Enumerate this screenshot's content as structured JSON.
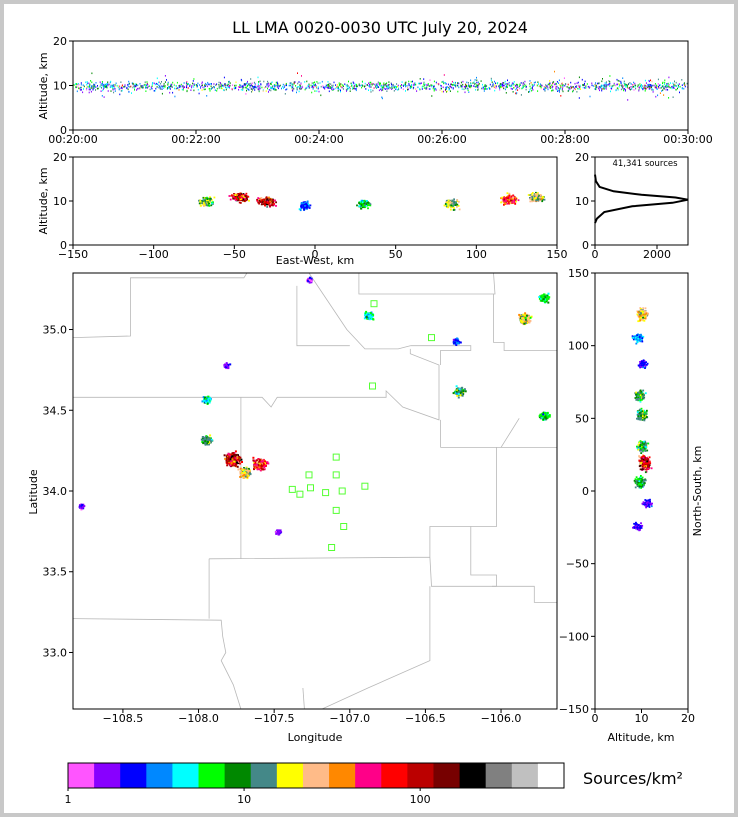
{
  "chart_data": [
    {
      "type": "scatter",
      "panel": "altitude-time",
      "title": "LL LMA 0020-0030 UTC July 20, 2024",
      "ylabel": "Altitude, km",
      "xlim_labels": [
        "00:20:00",
        "00:30:00"
      ],
      "x_ticks": [
        "00:20:00",
        "00:22:00",
        "00:24:00",
        "00:26:00",
        "00:28:00",
        "00:30:00"
      ],
      "ylim": [
        0,
        20
      ],
      "y_ticks": [
        0,
        10,
        20
      ],
      "altitude_band_km": [
        5,
        15
      ],
      "core_altitude_km": 10
    },
    {
      "type": "heatmap",
      "panel": "east-west-altitude",
      "xlabel": "East-West, km",
      "ylabel": "Altitude, km",
      "xlim": [
        -150,
        150
      ],
      "x_ticks": [
        -150,
        -100,
        -50,
        0,
        50,
        100,
        150
      ],
      "ylim": [
        0,
        20
      ],
      "y_ticks": [
        0,
        10,
        20
      ],
      "clusters": [
        {
          "x": -68,
          "alt": 10,
          "intensity": 0.5
        },
        {
          "x": -47,
          "alt": 11,
          "intensity": 0.85
        },
        {
          "x": -30,
          "alt": 10,
          "intensity": 0.9
        },
        {
          "x": -7,
          "alt": 9,
          "intensity": 0.15
        },
        {
          "x": 30,
          "alt": 9.5,
          "intensity": 0.35
        },
        {
          "x": 84,
          "alt": 9.5,
          "intensity": 0.5
        },
        {
          "x": 120,
          "alt": 10.5,
          "intensity": 0.75
        },
        {
          "x": 137,
          "alt": 11,
          "intensity": 0.55
        }
      ]
    },
    {
      "type": "line",
      "panel": "altitude-histogram",
      "annotation": "41,341 sources",
      "xlim": [
        0,
        3000
      ],
      "x_ticks": [
        0,
        2000
      ],
      "ylim": [
        0,
        20
      ],
      "y_ticks": [
        0,
        10,
        20
      ],
      "curve": [
        [
          0,
          5
        ],
        [
          60,
          6
        ],
        [
          300,
          7.5
        ],
        [
          1200,
          8.8
        ],
        [
          2500,
          9.6
        ],
        [
          3000,
          10.3
        ],
        [
          2600,
          10.8
        ],
        [
          1500,
          11.4
        ],
        [
          600,
          12.2
        ],
        [
          150,
          13.2
        ],
        [
          30,
          14.5
        ],
        [
          0,
          16
        ]
      ]
    },
    {
      "type": "heatmap",
      "panel": "plan-view",
      "xlabel": "Longitude",
      "ylabel": "Latitude",
      "xlim": [
        -108.83,
        -105.63
      ],
      "x_ticks": [
        -108.5,
        -108.0,
        -107.5,
        -107.0,
        -106.5,
        -106.0
      ],
      "ylim": [
        32.65,
        35.35
      ],
      "y_ticks": [
        33.0,
        33.5,
        34.0,
        34.5,
        35.0
      ],
      "clusters": [
        {
          "lon": -107.6,
          "lat": 34.17,
          "intensity": 0.8
        },
        {
          "lon": -107.78,
          "lat": 34.2,
          "intensity": 0.9
        },
        {
          "lon": -107.7,
          "lat": 34.12,
          "intensity": 0.6
        },
        {
          "lon": -107.95,
          "lat": 34.32,
          "intensity": 0.45
        },
        {
          "lon": -107.95,
          "lat": 34.57,
          "intensity": 0.3
        },
        {
          "lon": -106.28,
          "lat": 34.62,
          "intensity": 0.45
        },
        {
          "lon": -105.85,
          "lat": 35.07,
          "intensity": 0.6
        },
        {
          "lon": -105.72,
          "lat": 35.2,
          "intensity": 0.35
        },
        {
          "lon": -105.72,
          "lat": 34.47,
          "intensity": 0.35
        },
        {
          "lon": -106.88,
          "lat": 35.09,
          "intensity": 0.3
        },
        {
          "lon": -106.3,
          "lat": 34.93,
          "intensity": 0.15
        },
        {
          "lon": -107.82,
          "lat": 34.78,
          "intensity": 0.06
        },
        {
          "lon": -107.27,
          "lat": 35.31,
          "intensity": 0.06
        },
        {
          "lon": -108.78,
          "lat": 33.91,
          "intensity": 0.06
        },
        {
          "lon": -107.48,
          "lat": 33.75,
          "intensity": 0.06
        }
      ],
      "stations": [
        [
          -106.84,
          35.16
        ],
        [
          -106.46,
          34.95
        ],
        [
          -106.85,
          34.65
        ],
        [
          -107.09,
          34.21
        ],
        [
          -107.27,
          34.1
        ],
        [
          -107.09,
          34.1
        ],
        [
          -107.38,
          34.01
        ],
        [
          -107.26,
          34.02
        ],
        [
          -107.33,
          33.98
        ],
        [
          -107.16,
          33.99
        ],
        [
          -107.05,
          34.0
        ],
        [
          -106.9,
          34.03
        ],
        [
          -107.09,
          33.88
        ],
        [
          -107.04,
          33.78
        ],
        [
          -107.12,
          33.65
        ]
      ]
    },
    {
      "type": "heatmap",
      "panel": "altitude-north-south",
      "xlabel": "Altitude, km",
      "ylabel": "North-South, km",
      "xlim": [
        0,
        20
      ],
      "x_ticks": [
        0,
        10,
        20
      ],
      "ylim": [
        -150,
        150
      ],
      "y_ticks": [
        -150,
        -100,
        -50,
        0,
        50,
        100,
        150
      ],
      "clusters": [
        {
          "alt": 10,
          "ns": 122,
          "intensity": 0.6
        },
        {
          "alt": 9,
          "ns": 106,
          "intensity": 0.2
        },
        {
          "alt": 10,
          "ns": 88,
          "intensity": 0.1
        },
        {
          "alt": 9.5,
          "ns": 66,
          "intensity": 0.45
        },
        {
          "alt": 10,
          "ns": 53,
          "intensity": 0.45
        },
        {
          "alt": 10,
          "ns": 31,
          "intensity": 0.45
        },
        {
          "alt": 10.5,
          "ns": 20,
          "intensity": 0.9
        },
        {
          "alt": 9.5,
          "ns": 7,
          "intensity": 0.4
        },
        {
          "alt": 11,
          "ns": -8,
          "intensity": 0.1
        },
        {
          "alt": 9,
          "ns": -24,
          "intensity": 0.08
        }
      ]
    }
  ],
  "colorbar": {
    "label": "Sources/km²",
    "ticks": [
      "1",
      "10",
      "100"
    ],
    "colors": [
      "#ff55ff",
      "#8800ff",
      "#0000ff",
      "#0088ff",
      "#00ffff",
      "#00ff00",
      "#008800",
      "#448888",
      "#ffff00",
      "#ffbb88",
      "#ff8800",
      "#ff0088",
      "#ff0000",
      "#bb0000",
      "#770000",
      "#000000",
      "#808080",
      "#c0c0c0",
      "#ffffff"
    ]
  }
}
